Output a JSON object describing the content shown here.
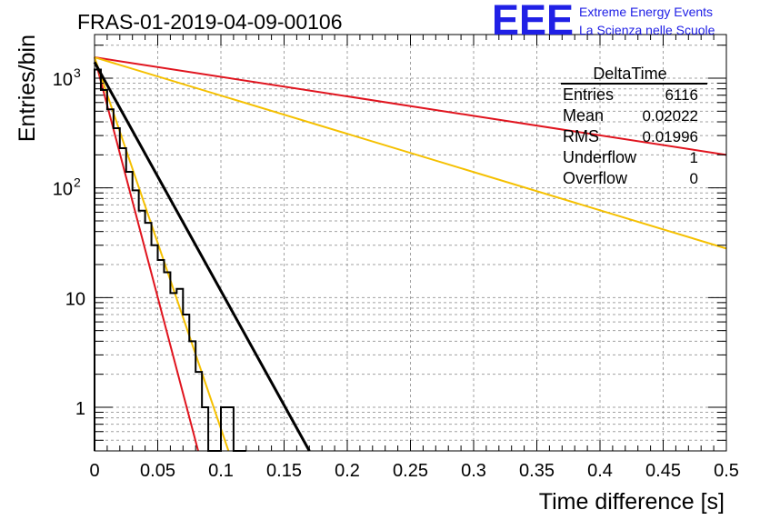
{
  "header": {
    "title": "FRAS-01-2019-04-09-00106",
    "logo_text": "EEE",
    "logo_line1": "Extreme Energy Events",
    "logo_line2": "La Scienza nelle Scuole"
  },
  "colors": {
    "logo_blue": "#2020e6",
    "fit": "#000000",
    "red": "#e0141e",
    "orange": "#f5c000",
    "grid": "#a0a0a0"
  },
  "stats": {
    "title": "DeltaTime",
    "rows": [
      {
        "label": "Entries",
        "value": "6116"
      },
      {
        "label": "Mean",
        "value": "0.02022"
      },
      {
        "label": "RMS",
        "value": "0.01996"
      },
      {
        "label": "Underflow",
        "value": "1"
      },
      {
        "label": "Overflow",
        "value": "0"
      }
    ]
  },
  "chart_data": {
    "type": "histogram",
    "title": "FRAS-01-2019-04-09-00106",
    "xlabel": "Time difference [s]",
    "ylabel": "Entries/bin",
    "xlim": [
      0,
      0.5
    ],
    "ylim": [
      0.4,
      2500
    ],
    "yscale": "log",
    "grid": true,
    "legend": "none",
    "x_ticks": [
      "0",
      "0.05",
      "0.1",
      "0.15",
      "0.2",
      "0.25",
      "0.3",
      "0.35",
      "0.4",
      "0.45",
      "0.5"
    ],
    "y_ticks": [
      {
        "value": 1,
        "base": "1",
        "exp": ""
      },
      {
        "value": 10,
        "base": "10",
        "exp": ""
      },
      {
        "value": 100,
        "base": "10",
        "exp": "2"
      },
      {
        "value": 1000,
        "base": "10",
        "exp": "3"
      }
    ],
    "histogram": {
      "bin_width": 0.005,
      "bin_start": 0,
      "counts": [
        1200,
        780,
        520,
        350,
        230,
        140,
        95,
        62,
        48,
        30,
        22,
        17,
        11,
        12,
        7,
        4,
        2.1,
        1,
        0.4,
        0.4,
        1,
        1,
        0.4,
        0.4
      ]
    },
    "fit": {
      "color": "#000000",
      "x": [
        0,
        0.17
      ],
      "y": [
        1400,
        0.4
      ]
    },
    "lines": [
      {
        "color": "#e0141e",
        "x": [
          0,
          0.5
        ],
        "y": [
          1550,
          200
        ]
      },
      {
        "color": "#f5c000",
        "x": [
          0,
          0.5
        ],
        "y": [
          1550,
          28
        ]
      },
      {
        "color": "#e0141e",
        "x": [
          0,
          0.082
        ],
        "y": [
          1550,
          0.4
        ]
      },
      {
        "color": "#f5c000",
        "x": [
          0,
          0.106
        ],
        "y": [
          1550,
          0.4
        ]
      }
    ]
  }
}
